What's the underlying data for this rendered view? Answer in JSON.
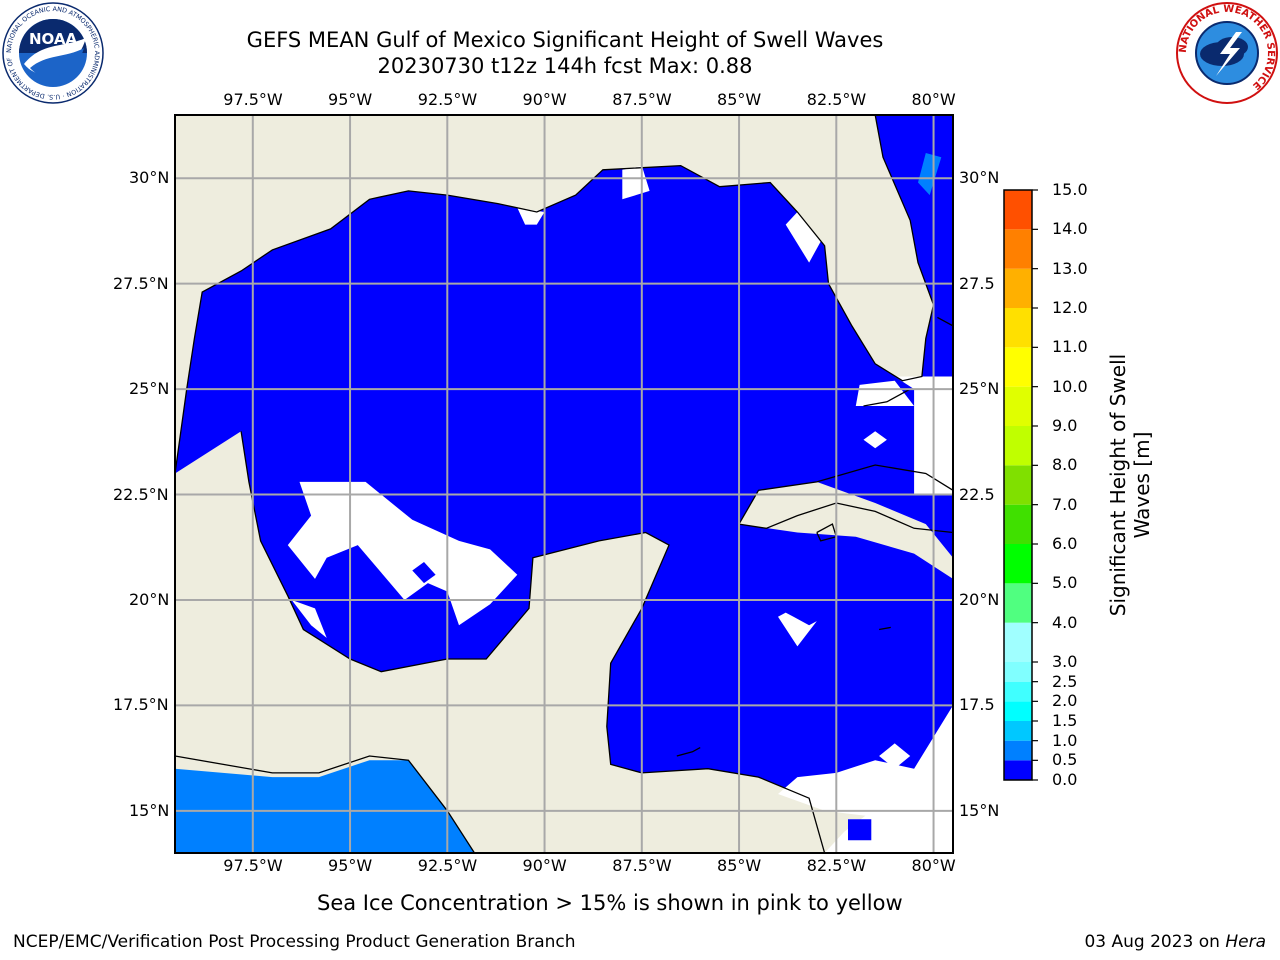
{
  "title": {
    "line1": "GEFS MEAN Gulf of Mexico Significant Height of Swell Waves",
    "line2": "20230730 t12z 144h fcst   Max: 0.88"
  },
  "map": {
    "projection": "lat-lon",
    "lon_range": [
      -99.5,
      -79.5
    ],
    "lat_range": [
      14,
      31.5
    ],
    "lon_ticks": [
      "97.5°W",
      "95°W",
      "92.5°W",
      "90°W",
      "87.5°W",
      "85°W",
      "82.5°W",
      "80°W"
    ],
    "lat_ticks_left": [
      "30°N",
      "27.5°N",
      "25°N",
      "22.5°N",
      "20°N",
      "17.5°N",
      "15°N"
    ],
    "lat_ticks_right": [
      "30°N",
      "27.5",
      "25°N",
      "22.5",
      "20°N",
      "17.5",
      "15°N"
    ],
    "land_color": "#eeedde",
    "ocean_default_color": "#0000ff",
    "pacific_color": "#0080ff",
    "grid": true
  },
  "colorbar": {
    "label": "Significant Height of Swell Waves [m]",
    "levels": [
      "0.0",
      "0.5",
      "1.0",
      "1.5",
      "2.0",
      "2.5",
      "3.0",
      "4.0",
      "5.0",
      "6.0",
      "7.0",
      "8.0",
      "9.0",
      "10.0",
      "11.0",
      "12.0",
      "13.0",
      "14.0",
      "15.0"
    ],
    "colors": [
      "#0000ff",
      "#0080ff",
      "#00c8ff",
      "#00ffff",
      "#40ffff",
      "#80ffff",
      "#a0ffff",
      "#50ff80",
      "#00ff00",
      "#40e000",
      "#80e000",
      "#c0ff00",
      "#e0ff00",
      "#ffff00",
      "#ffe000",
      "#ffb000",
      "#ff8000",
      "#ff5000",
      "#ff2000",
      "#ff0000"
    ]
  },
  "note": "Sea Ice Concentration > 15% is shown in pink to yellow",
  "footer": {
    "left": "NCEP/EMC/Verification Post Processing Product Generation Branch",
    "date": "03 Aug 2023 on ",
    "machine": "Hera"
  },
  "logos": {
    "noaa_text": "NOAA",
    "noaa_ring": "NATIONAL OCEANIC AND ATMOSPHERIC ADMINISTRATION · U.S. DEPARTMENT OF COMMERCE",
    "nws_ring": "NATIONAL WEATHER SERVICE"
  }
}
